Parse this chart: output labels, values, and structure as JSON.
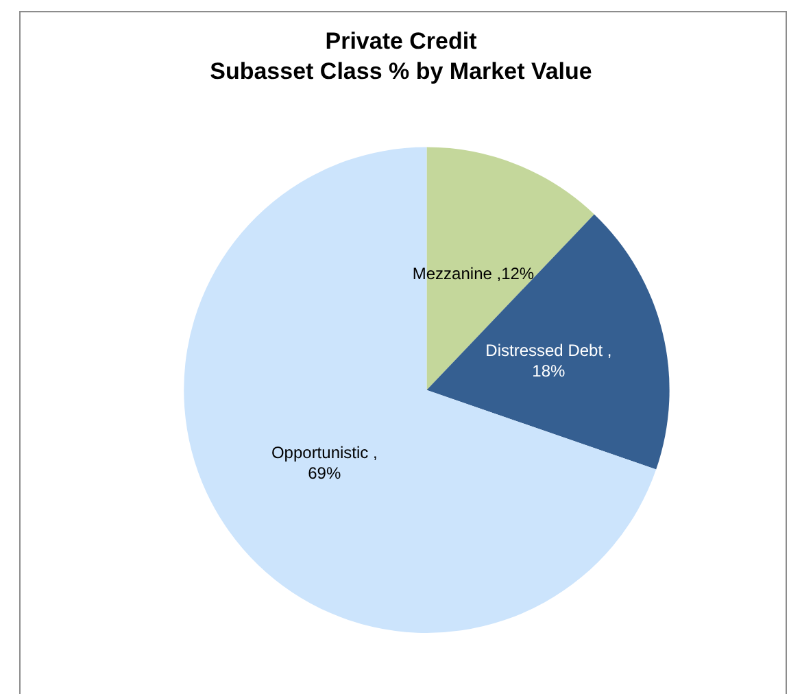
{
  "chart_data": {
    "type": "pie",
    "title": "Private Credit\nSubasset Class % by Market Value",
    "categories": [
      "Mezzanine",
      "Distressed Debt",
      "Opportunistic"
    ],
    "values": [
      12,
      18,
      69
    ],
    "value_labels": [
      ",12%",
      ",18%",
      ",69%"
    ],
    "colors": [
      "#c4d79b",
      "#355f91",
      "#cce4fc"
    ]
  }
}
